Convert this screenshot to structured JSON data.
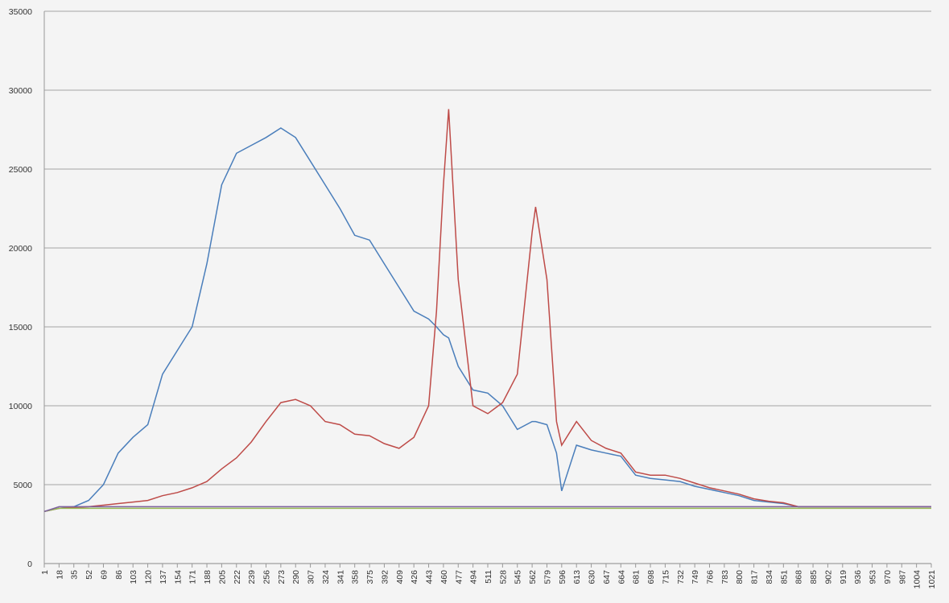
{
  "chart_data": {
    "type": "line",
    "x": [
      1,
      18,
      35,
      52,
      69,
      86,
      103,
      120,
      137,
      154,
      171,
      188,
      205,
      222,
      239,
      256,
      273,
      290,
      307,
      324,
      341,
      358,
      375,
      392,
      409,
      426,
      443,
      452,
      460,
      466,
      477,
      494,
      511,
      528,
      545,
      562,
      566,
      579,
      590,
      596,
      613,
      630,
      647,
      664,
      681,
      698,
      715,
      732,
      749,
      766,
      783,
      800,
      817,
      834,
      851,
      868,
      885,
      902,
      919,
      936,
      953,
      970,
      987,
      1004,
      1021
    ],
    "series": [
      {
        "color": "#4a7ebb",
        "values": [
          3300,
          3500,
          3600,
          4000,
          5000,
          7000,
          8000,
          8800,
          12000,
          13500,
          15000,
          19000,
          24000,
          26000,
          26500,
          27000,
          27600,
          27000,
          25500,
          24000,
          22500,
          20800,
          20500,
          19000,
          17500,
          16000,
          15500,
          15000,
          14500,
          14300,
          12500,
          11000,
          10800,
          10000,
          8500,
          9000,
          9000,
          8800,
          7000,
          4600,
          7500,
          7200,
          7000,
          6800,
          5600,
          5400,
          5300,
          5200,
          4900,
          4700,
          4500,
          4300,
          4000,
          3900,
          3800,
          3600,
          3600,
          3600,
          3600,
          3600,
          3600,
          3600,
          3600,
          3600,
          3600
        ]
      },
      {
        "color": "#be4b48",
        "values": [
          3300,
          3500,
          3550,
          3600,
          3700,
          3800,
          3900,
          4000,
          4300,
          4500,
          4800,
          5200,
          6000,
          6700,
          7700,
          9000,
          10200,
          10400,
          10000,
          9000,
          8800,
          8200,
          8100,
          7600,
          7300,
          8000,
          10000,
          16000,
          24000,
          28800,
          18000,
          10000,
          9500,
          10200,
          12000,
          21000,
          22600,
          18000,
          9000,
          7500,
          9000,
          7800,
          7300,
          7000,
          5800,
          5600,
          5600,
          5400,
          5100,
          4800,
          4600,
          4400,
          4100,
          3950,
          3850,
          3600,
          3600,
          3600,
          3600,
          3600,
          3600,
          3600,
          3600,
          3600,
          3600
        ]
      },
      {
        "color": "#98b954",
        "values": [
          3300,
          3500,
          3500,
          3500,
          3500,
          3500,
          3500,
          3500,
          3500,
          3500,
          3500,
          3500,
          3500,
          3500,
          3500,
          3500,
          3500,
          3500,
          3500,
          3500,
          3500,
          3500,
          3500,
          3500,
          3500,
          3500,
          3500,
          3500,
          3500,
          3500,
          3500,
          3500,
          3500,
          3500,
          3500,
          3500,
          3500,
          3500,
          3500,
          3500,
          3500,
          3500,
          3500,
          3500,
          3500,
          3500,
          3500,
          3500,
          3500,
          3500,
          3500,
          3500,
          3500,
          3500,
          3500,
          3500,
          3500,
          3500,
          3500,
          3500,
          3500,
          3500,
          3500,
          3500,
          3500
        ]
      },
      {
        "color": "#7d60a0",
        "values": [
          3300,
          3600,
          3600,
          3600,
          3600,
          3600,
          3600,
          3600,
          3600,
          3600,
          3600,
          3600,
          3600,
          3600,
          3600,
          3600,
          3600,
          3600,
          3600,
          3600,
          3600,
          3600,
          3600,
          3600,
          3600,
          3600,
          3600,
          3600,
          3600,
          3600,
          3600,
          3600,
          3600,
          3600,
          3600,
          3600,
          3600,
          3600,
          3600,
          3600,
          3600,
          3600,
          3600,
          3600,
          3600,
          3600,
          3600,
          3600,
          3600,
          3600,
          3600,
          3600,
          3600,
          3600,
          3600,
          3600,
          3600,
          3600,
          3600,
          3600,
          3600,
          3600,
          3600,
          3600,
          3600
        ]
      }
    ],
    "xlim": [
      1,
      1021
    ],
    "xticks": [
      1,
      18,
      35,
      52,
      69,
      86,
      103,
      120,
      137,
      154,
      171,
      188,
      205,
      222,
      239,
      256,
      273,
      290,
      307,
      324,
      341,
      358,
      375,
      392,
      409,
      426,
      443,
      460,
      477,
      494,
      511,
      528,
      545,
      562,
      579,
      596,
      613,
      630,
      647,
      664,
      681,
      698,
      715,
      732,
      749,
      766,
      783,
      800,
      817,
      834,
      851,
      868,
      885,
      902,
      919,
      936,
      953,
      970,
      987,
      1004,
      1021
    ],
    "ylim": [
      0,
      35000
    ],
    "yticks": [
      0,
      5000,
      10000,
      15000,
      20000,
      25000,
      30000,
      35000
    ],
    "grid": true
  }
}
